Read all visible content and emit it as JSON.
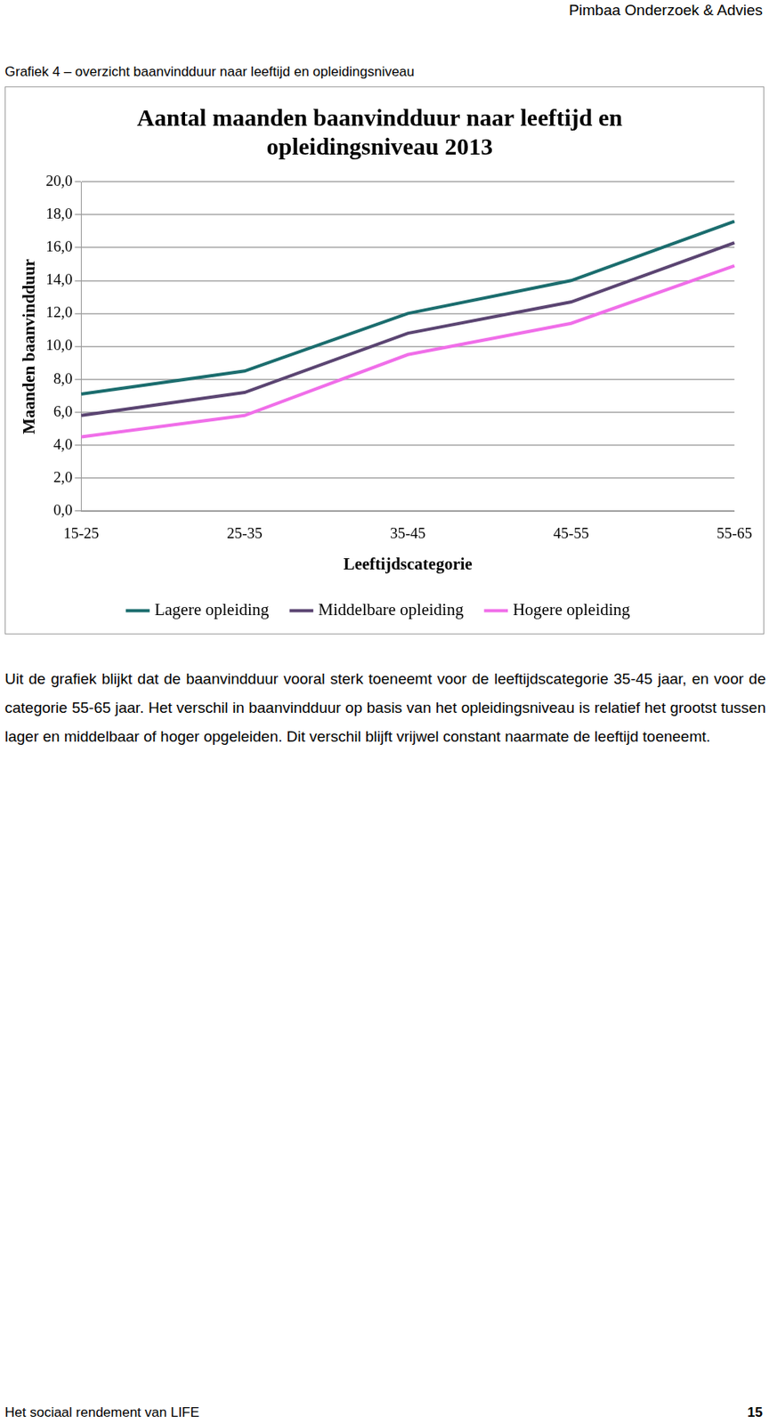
{
  "header": {
    "text": "Pimbaa Onderzoek & Advies"
  },
  "caption": "Grafiek 4 – overzicht baanvindduur naar leeftijd en opleidingsniveau",
  "chart_data": {
    "type": "line",
    "title": [
      "Aantal maanden baanvindduur naar leeftijd en",
      "opleidingsniveau 2013"
    ],
    "x_label": "Leeftijdscategorie",
    "y_label": "Maanden baanvindduur",
    "categories": [
      "15-25",
      "25-35",
      "35-45",
      "45-55",
      "55-65"
    ],
    "series": [
      {
        "name": "Lagere opleiding",
        "color": "#1b6d6e",
        "values": [
          7.1,
          8.5,
          12.0,
          14.0,
          17.6
        ]
      },
      {
        "name": "Middelbare opleiding",
        "color": "#5b4572",
        "values": [
          5.8,
          7.2,
          10.8,
          12.7,
          16.3
        ]
      },
      {
        "name": "Hogere opleiding",
        "color": "#f06ee9",
        "values": [
          4.5,
          5.8,
          9.5,
          11.4,
          14.9
        ]
      }
    ],
    "ylim": [
      0,
      20
    ],
    "yticks": [
      {
        "value": 0,
        "label": "0,0"
      },
      {
        "value": 2,
        "label": "2,0"
      },
      {
        "value": 4,
        "label": "4,0"
      },
      {
        "value": 6,
        "label": "6,0"
      },
      {
        "value": 8,
        "label": "8,0"
      },
      {
        "value": 10,
        "label": "10,0"
      },
      {
        "value": 12,
        "label": "12,0"
      },
      {
        "value": 14,
        "label": "14,0"
      },
      {
        "value": 16,
        "label": "16,0"
      },
      {
        "value": 18,
        "label": "18,0"
      },
      {
        "value": 20,
        "label": "20,0"
      }
    ],
    "grid": true,
    "legend": "bottom",
    "marker": "none"
  },
  "body": "Uit de grafiek blijkt dat de baanvindduur vooral sterk toeneemt voor de leeftijdscategorie 35-45 jaar, en voor de categorie 55-65 jaar. Het verschil in baanvindduur op basis van het opleidingsniveau is relatief het grootst tussen lager en middelbaar of hoger opgeleiden. Dit verschil blijft vrijwel constant naarmate de leeftijd toeneemt.",
  "footer": {
    "left": "Het sociaal rendement van LIFE",
    "right": "15"
  }
}
